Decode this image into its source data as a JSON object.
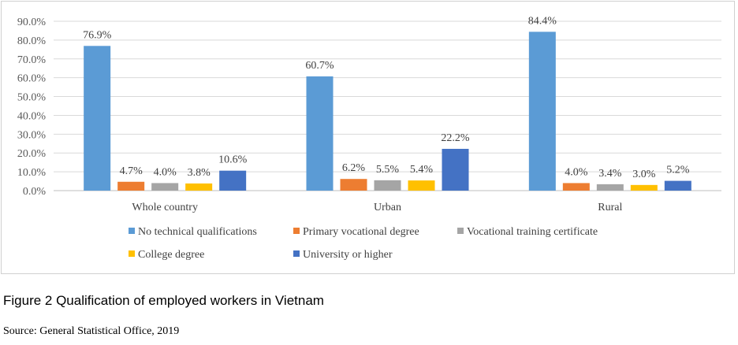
{
  "chart_data": {
    "type": "bar",
    "categories": [
      "Whole country",
      "Urban",
      "Rural"
    ],
    "series": [
      {
        "name": "No technical qualifications",
        "color": "#5b9bd5",
        "values": [
          76.9,
          60.7,
          84.4
        ]
      },
      {
        "name": "Primary vocational degree",
        "color": "#ed7d31",
        "values": [
          4.7,
          6.2,
          4.0
        ]
      },
      {
        "name": "Vocational training certificate",
        "color": "#a5a5a5",
        "values": [
          4.0,
          5.5,
          3.4
        ]
      },
      {
        "name": "College degree",
        "color": "#ffc000",
        "values": [
          3.8,
          5.4,
          3.0
        ]
      },
      {
        "name": "University or higher",
        "color": "#4472c4",
        "values": [
          10.6,
          22.2,
          5.2
        ]
      }
    ],
    "ylim": [
      0,
      90
    ],
    "yticks": [
      "0.0%",
      "10.0%",
      "20.0%",
      "30.0%",
      "40.0%",
      "50.0%",
      "60.0%",
      "70.0%",
      "80.0%",
      "90.0%"
    ],
    "value_suffix": "%",
    "grid": true,
    "legend_position": "bottom"
  },
  "caption": "Figure 2 Qualification of employed workers in Vietnam",
  "source": "Source: General Statistical Office, 2019"
}
